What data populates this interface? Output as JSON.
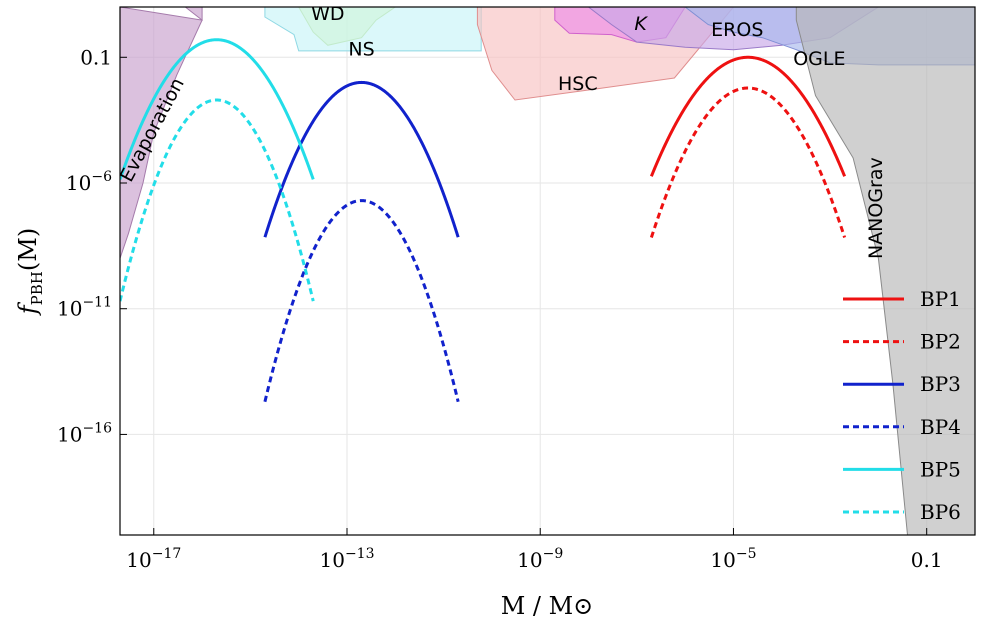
{
  "chart_data": {
    "type": "line",
    "xlabel": "M / M⊙",
    "ylabel": "f",
    "ylabel_sub": "PBH",
    "ylabel_suffix": "(M)",
    "x_log": true,
    "y_log": true,
    "xlim": [
      2e-18,
      1
    ],
    "ylim": [
      1e-20,
      10
    ],
    "x_ticks": [
      {
        "value": 1e-17,
        "base": "10",
        "exp": "−17"
      },
      {
        "value": 1e-13,
        "base": "10",
        "exp": "−13"
      },
      {
        "value": 1e-09,
        "base": "10",
        "exp": "−9"
      },
      {
        "value": 1e-05,
        "base": "10",
        "exp": "−5"
      },
      {
        "value": 0.1,
        "base": "0.1",
        "exp": ""
      }
    ],
    "y_ticks": [
      {
        "value": 0.1,
        "base": "0.1",
        "exp": ""
      },
      {
        "value": 1e-06,
        "base": "10",
        "exp": "−6"
      },
      {
        "value": 1e-11,
        "base": "10",
        "exp": "−11"
      },
      {
        "value": 1e-16,
        "base": "10",
        "exp": "−16"
      }
    ],
    "grid": true,
    "legend_position": "right",
    "series": [
      {
        "name": "BP1",
        "color": "#ee1111",
        "dash": "solid",
        "peak_M": 2e-05,
        "peak_f": 0.1,
        "width_dex": 0.65
      },
      {
        "name": "BP2",
        "color": "#ee1111",
        "dash": "dashed",
        "peak_M": 2e-05,
        "peak_f": 0.006,
        "width_dex": 0.58
      },
      {
        "name": "BP3",
        "color": "#1122cc",
        "dash": "solid",
        "peak_M": 2e-13,
        "peak_f": 0.01,
        "width_dex": 0.57
      },
      {
        "name": "BP4",
        "color": "#1122cc",
        "dash": "dashed",
        "peak_M": 2e-13,
        "peak_f": 2e-07,
        "width_dex": 0.5
      },
      {
        "name": "BP5",
        "color": "#22dde8",
        "dash": "solid",
        "peak_M": 2e-16,
        "peak_f": 0.5,
        "width_dex": 0.6
      },
      {
        "name": "BP6",
        "color": "#22dde8",
        "dash": "dashed",
        "peak_M": 2e-16,
        "peak_f": 0.002,
        "width_dex": 0.5
      }
    ],
    "constraints": [
      {
        "label": "Evaporation",
        "fill": "#c8a0cc",
        "stroke": "#a57bab",
        "points": [
          [
            2e-18,
            10
          ],
          [
            4.5e-17,
            10
          ],
          [
            1e-16,
            3
          ],
          [
            1e-16,
            10
          ],
          [
            2e-18,
            10
          ],
          [
            2e-18,
            1e-09
          ],
          [
            3e-18,
            1e-08
          ],
          [
            6e-18,
            1e-06
          ],
          [
            1e-17,
            0.0001
          ],
          [
            3e-17,
            0.02
          ],
          [
            1e-16,
            3
          ]
        ]
      },
      {
        "label": "WD",
        "fill": "#e2f7a8",
        "stroke": "#b8d878",
        "points": [
          [
            1e-14,
            10
          ],
          [
            1e-12,
            10
          ],
          [
            4e-13,
            3
          ],
          [
            2e-13,
            0.6
          ],
          [
            4e-14,
            0.3
          ],
          [
            2e-14,
            1
          ]
        ]
      },
      {
        "label": "NS",
        "fill": "#c8f4f8",
        "stroke": "#8fd8e4",
        "points": [
          [
            2e-15,
            10
          ],
          [
            6e-11,
            10
          ],
          [
            6e-11,
            0.18
          ],
          [
            1e-14,
            0.18
          ],
          [
            8e-15,
            0.8
          ],
          [
            2e-15,
            4
          ]
        ]
      },
      {
        "label": "HSC",
        "fill": "#f8c1c1",
        "stroke": "#e08e8e",
        "points": [
          [
            5e-11,
            10
          ],
          [
            1e-05,
            10
          ],
          [
            6e-07,
            0.015
          ],
          [
            1e-08,
            0.005
          ],
          [
            3e-10,
            0.002
          ],
          [
            1e-10,
            0.03
          ],
          [
            5e-11,
            2
          ]
        ]
      },
      {
        "label": "K",
        "fill": "#ee8ce8",
        "stroke": "#d062cc",
        "points": [
          [
            2e-09,
            10
          ],
          [
            1e-06,
            10
          ],
          [
            4e-07,
            0.6
          ],
          [
            1e-07,
            0.4
          ],
          [
            3e-08,
            0.8
          ],
          [
            4e-09,
            0.9
          ],
          [
            2e-09,
            3
          ]
        ]
      },
      {
        "label": "EROS",
        "fill": "#c8a8e8",
        "stroke": "#9a7ac8",
        "points": [
          [
            1e-08,
            10
          ],
          [
            0.01,
            10
          ],
          [
            0.001,
            0.6
          ],
          [
            0.0001,
            0.3
          ],
          [
            1e-05,
            0.2
          ],
          [
            1e-06,
            0.25
          ],
          [
            1e-07,
            0.4
          ],
          [
            3e-08,
            2
          ]
        ]
      },
      {
        "label": "OGLE",
        "fill": "#a8b8ec",
        "stroke": "#7f8fd4",
        "points": [
          [
            1e-06,
            10
          ],
          [
            1,
            10
          ],
          [
            1,
            0.05
          ],
          [
            0.1,
            0.05
          ],
          [
            0.01,
            0.05
          ],
          [
            0.001,
            0.06
          ],
          [
            0.0002,
            0.2
          ],
          [
            4e-05,
            0.6
          ],
          [
            1e-05,
            1
          ],
          [
            3e-06,
            2
          ]
        ]
      },
      {
        "label": "NANOGrav",
        "fill": "#b7b7b7",
        "stroke": "#8a8a8a",
        "points": [
          [
            0.0002,
            10
          ],
          [
            1,
            10
          ],
          [
            1,
            1e-20
          ],
          [
            0.04,
            1e-20
          ],
          [
            0.02,
            1e-14
          ],
          [
            0.01,
            1e-09
          ],
          [
            0.003,
            1e-05
          ],
          [
            0.0005,
            0.003
          ],
          [
            0.0002,
            3
          ]
        ]
      }
    ],
    "labels": [
      {
        "text": "Evaporation",
        "x": 1.2e-17,
        "y": 0.0001,
        "rotate": -62
      },
      {
        "text": "WD",
        "x": 4e-14,
        "y": 3
      },
      {
        "text": "NS",
        "x": 2e-13,
        "y": 0.12
      },
      {
        "text": "HSC",
        "x": 6e-09,
        "y": 0.005
      },
      {
        "text": "K",
        "x": 1.2e-07,
        "y": 1.2,
        "italic": true
      },
      {
        "text": "EROS",
        "x": 1.2e-05,
        "y": 0.7
      },
      {
        "text": "OGLE",
        "x": 0.0006,
        "y": 0.05
      },
      {
        "text": "NANOGrav",
        "x": 0.012,
        "y": 1e-07,
        "rotate": -90
      }
    ]
  }
}
